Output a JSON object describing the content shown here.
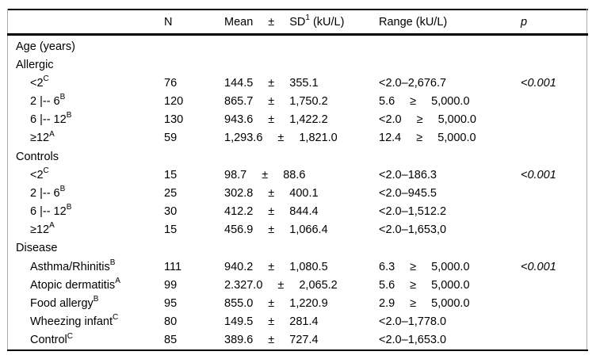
{
  "colors": {
    "background": "#ffffff",
    "text": "#000000",
    "rule": "#000000",
    "table_edge": "#ababab"
  },
  "table": {
    "header": {
      "n": "N",
      "mean": "Mean",
      "pm": "±",
      "sd_pre": "SD",
      "sd_sup": "1",
      "sd_post": "(kU/L)",
      "range": "Range (kU/L)",
      "p": "p"
    },
    "rows": [
      {
        "kind": "section",
        "label": "Age (years)"
      },
      {
        "kind": "section",
        "label": "Allergic"
      },
      {
        "kind": "data",
        "label": "<2",
        "sup": "C",
        "n": "76",
        "mean": [
          "144.5",
          "±",
          "355.1"
        ],
        "range": [
          "<2.0–2,676.7"
        ],
        "p": "<0.001"
      },
      {
        "kind": "data",
        "label": "2 |-- 6",
        "sup": "B",
        "n": "120",
        "mean": [
          "865.7",
          "±",
          "1,750.2"
        ],
        "range": [
          "5.6",
          "≥",
          "5,000.0"
        ],
        "p": ""
      },
      {
        "kind": "data",
        "label": "6 |-- 12",
        "sup": "B",
        "n": "130",
        "mean": [
          "943.6",
          "±",
          "1,422.2"
        ],
        "range": [
          "<2.0",
          "≥",
          "5,000.0"
        ],
        "p": ""
      },
      {
        "kind": "data",
        "label": "≥12",
        "sup": "A",
        "n": "59",
        "mean": [
          "1,293.6",
          "±",
          "1,821.0"
        ],
        "range": [
          "12.4",
          "≥",
          "5,000.0"
        ],
        "p": ""
      },
      {
        "kind": "section",
        "label": "Controls"
      },
      {
        "kind": "data",
        "label": "<2",
        "sup": "C",
        "n": "15",
        "mean": [
          "98.7",
          "±",
          "88.6"
        ],
        "range": [
          "<2.0–186.3"
        ],
        "p": "<0.001"
      },
      {
        "kind": "data",
        "label": "2 |-- 6",
        "sup": "B",
        "n": "25",
        "mean": [
          "302.8",
          "±",
          "400.1"
        ],
        "range": [
          "<2.0–945.5"
        ],
        "p": ""
      },
      {
        "kind": "data",
        "label": "6 |-- 12",
        "sup": "B",
        "n": "30",
        "mean": [
          "412.2",
          "±",
          "844.4"
        ],
        "range": [
          "<2.0–1,512.2"
        ],
        "p": ""
      },
      {
        "kind": "data",
        "label": "≥12",
        "sup": "A",
        "n": "15",
        "mean": [
          "456.9",
          "±",
          "1,066.4"
        ],
        "range": [
          "<2.0–1,653,0"
        ],
        "p": ""
      },
      {
        "kind": "section",
        "label": "Disease"
      },
      {
        "kind": "data",
        "label": "Asthma/Rhinitis",
        "sup": "B",
        "n": "111",
        "mean": [
          "940.2",
          "±",
          "1,080.5"
        ],
        "range": [
          "6.3",
          "≥",
          "5,000.0"
        ],
        "p": "<0.001"
      },
      {
        "kind": "data",
        "label": "Atopic dermatitis",
        "sup": "A",
        "n": "99",
        "mean": [
          "2.327.0",
          "±",
          "2,065.2"
        ],
        "range": [
          "5.6",
          "≥",
          "5,000.0"
        ],
        "p": ""
      },
      {
        "kind": "data",
        "label": "Food allergy",
        "sup": "B",
        "n": "95",
        "mean": [
          "855.0",
          "±",
          "1,220.9"
        ],
        "range": [
          "2.9",
          "≥",
          "5,000.0"
        ],
        "p": ""
      },
      {
        "kind": "data",
        "label": "Wheezing infant",
        "sup": "C",
        "n": "80",
        "mean": [
          "149.5",
          "±",
          "281.4"
        ],
        "range": [
          "<2.0–1,778.0"
        ],
        "p": ""
      },
      {
        "kind": "data",
        "label": "Control",
        "sup": "C",
        "n": "85",
        "mean": [
          "389.6",
          "±",
          "727.4"
        ],
        "range": [
          "<2.0–1,653.0"
        ],
        "p": ""
      }
    ]
  }
}
